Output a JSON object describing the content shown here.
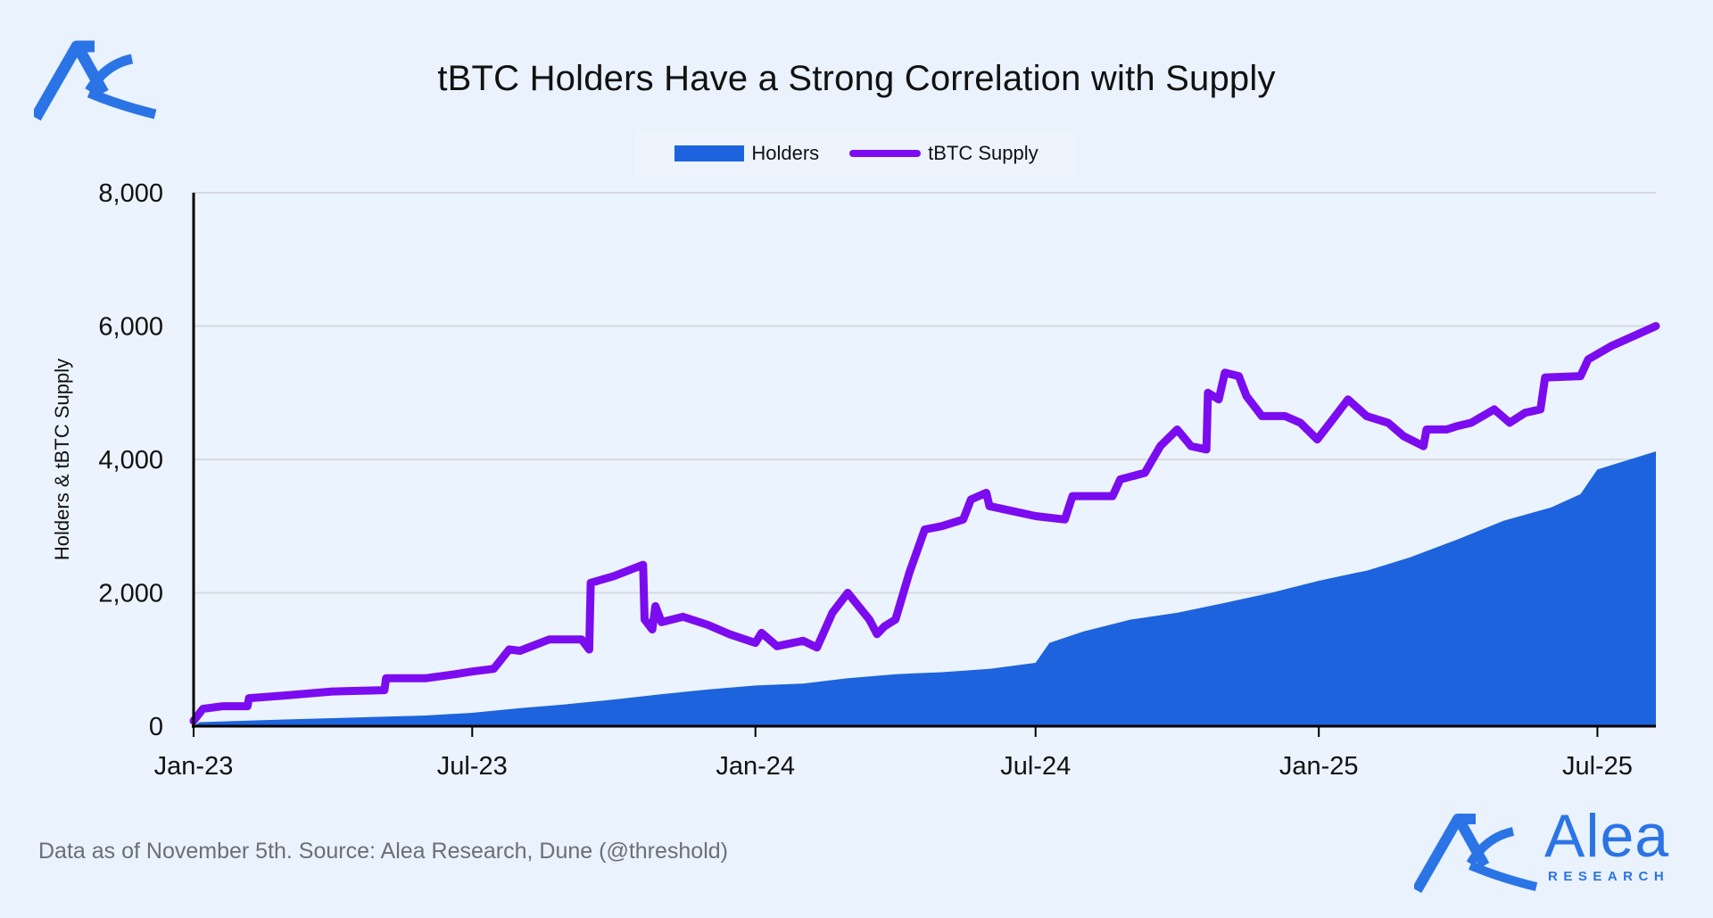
{
  "title": "tBTC Holders Have a Strong Correlation with Supply",
  "legend": {
    "holders": "Holders",
    "supply": "tBTC Supply"
  },
  "footer": "Data as of November 5th. Source: Alea Research, Dune (@threshold)",
  "brand": {
    "name": "Alea",
    "sub": "RESEARCH"
  },
  "colors": {
    "holders": "#1d63dd",
    "supply": "#7b0cf0",
    "background": "#e9f2fd",
    "grid": "#d6d9de",
    "brand": "#2b74e6"
  },
  "chart_data": {
    "type": "line",
    "ylabel": "Holders & tBTC Supply",
    "ylim": [
      0,
      8000
    ],
    "yticks": [
      0,
      2000,
      4000,
      6000,
      8000
    ],
    "ytick_labels": [
      "0",
      "2,000",
      "4,000",
      "6,000",
      "8,000"
    ],
    "xlim": [
      "2023-01-01",
      "2025-08-08"
    ],
    "xticks": [
      "2023-01-01",
      "2023-07-01",
      "2024-01-01",
      "2024-07-01",
      "2025-01-01",
      "2025-07-01"
    ],
    "xtick_labels": [
      "Jan-23",
      "Jul-23",
      "Jan-24",
      "Jul-24",
      "Jan-25",
      "Jul-25"
    ],
    "grid": true,
    "legend_position": "top-center",
    "series": [
      {
        "name": "Holders",
        "style": "area",
        "points": [
          [
            "2023-01-01",
            0
          ],
          [
            "2023-01-05",
            60
          ],
          [
            "2023-02-01",
            80
          ],
          [
            "2023-03-01",
            100
          ],
          [
            "2023-04-01",
            120
          ],
          [
            "2023-05-01",
            140
          ],
          [
            "2023-06-01",
            160
          ],
          [
            "2023-07-01",
            200
          ],
          [
            "2023-08-01",
            270
          ],
          [
            "2023-09-01",
            330
          ],
          [
            "2023-10-01",
            400
          ],
          [
            "2023-11-01",
            480
          ],
          [
            "2023-12-01",
            550
          ],
          [
            "2024-01-01",
            610
          ],
          [
            "2024-02-01",
            640
          ],
          [
            "2024-03-01",
            720
          ],
          [
            "2024-04-01",
            780
          ],
          [
            "2024-05-01",
            810
          ],
          [
            "2024-06-01",
            860
          ],
          [
            "2024-07-01",
            950
          ],
          [
            "2024-07-10",
            1250
          ],
          [
            "2024-08-01",
            1420
          ],
          [
            "2024-09-01",
            1600
          ],
          [
            "2024-10-01",
            1700
          ],
          [
            "2024-11-01",
            1850
          ],
          [
            "2024-12-01",
            2000
          ],
          [
            "2025-01-01",
            2180
          ],
          [
            "2025-01-25",
            2300
          ],
          [
            "2025-02-01",
            2330
          ],
          [
            "2025-03-01",
            2530
          ],
          [
            "2025-04-01",
            2800
          ],
          [
            "2025-05-01",
            3080
          ],
          [
            "2025-06-01",
            3280
          ],
          [
            "2025-06-20",
            3480
          ],
          [
            "2025-07-01",
            3850
          ],
          [
            "2025-08-08",
            4120
          ]
        ]
      },
      {
        "name": "tBTC Supply",
        "style": "line",
        "points": [
          [
            "2023-01-01",
            80
          ],
          [
            "2023-01-07",
            260
          ],
          [
            "2023-01-20",
            300
          ],
          [
            "2023-02-05",
            300
          ],
          [
            "2023-02-06",
            420
          ],
          [
            "2023-03-01",
            460
          ],
          [
            "2023-04-01",
            520
          ],
          [
            "2023-05-05",
            540
          ],
          [
            "2023-05-06",
            720
          ],
          [
            "2023-06-01",
            720
          ],
          [
            "2023-06-20",
            780
          ],
          [
            "2023-07-01",
            820
          ],
          [
            "2023-07-15",
            860
          ],
          [
            "2023-07-25",
            1150
          ],
          [
            "2023-08-01",
            1130
          ],
          [
            "2023-08-20",
            1300
          ],
          [
            "2023-09-10",
            1300
          ],
          [
            "2023-09-15",
            1150
          ],
          [
            "2023-09-16",
            2150
          ],
          [
            "2023-10-01",
            2250
          ],
          [
            "2023-10-20",
            2420
          ],
          [
            "2023-10-21",
            1600
          ],
          [
            "2023-10-26",
            1450
          ],
          [
            "2023-10-28",
            1800
          ],
          [
            "2023-11-01",
            1560
          ],
          [
            "2023-11-15",
            1640
          ],
          [
            "2023-12-01",
            1520
          ],
          [
            "2023-12-15",
            1380
          ],
          [
            "2024-01-01",
            1250
          ],
          [
            "2024-01-05",
            1400
          ],
          [
            "2024-01-15",
            1200
          ],
          [
            "2024-02-01",
            1280
          ],
          [
            "2024-02-10",
            1180
          ],
          [
            "2024-02-20",
            1700
          ],
          [
            "2024-03-01",
            2000
          ],
          [
            "2024-03-15",
            1600
          ],
          [
            "2024-03-20",
            1380
          ],
          [
            "2024-03-25",
            1500
          ],
          [
            "2024-04-01",
            1600
          ],
          [
            "2024-04-10",
            2300
          ],
          [
            "2024-04-20",
            2950
          ],
          [
            "2024-05-01",
            3000
          ],
          [
            "2024-05-15",
            3100
          ],
          [
            "2024-05-20",
            3400
          ],
          [
            "2024-05-30",
            3500
          ],
          [
            "2024-06-01",
            3300
          ],
          [
            "2024-07-01",
            3150
          ],
          [
            "2024-07-20",
            3100
          ],
          [
            "2024-07-25",
            3450
          ],
          [
            "2024-08-20",
            3450
          ],
          [
            "2024-08-25",
            3700
          ],
          [
            "2024-09-10",
            3800
          ],
          [
            "2024-09-20",
            4200
          ],
          [
            "2024-10-01",
            4450
          ],
          [
            "2024-10-10",
            4200
          ],
          [
            "2024-10-20",
            4150
          ],
          [
            "2024-10-21",
            5000
          ],
          [
            "2024-10-28",
            4900
          ],
          [
            "2024-11-01",
            5300
          ],
          [
            "2024-11-10",
            5250
          ],
          [
            "2024-11-15",
            4950
          ],
          [
            "2024-11-25",
            4650
          ],
          [
            "2024-12-10",
            4650
          ],
          [
            "2024-12-20",
            4550
          ],
          [
            "2024-12-31",
            4300
          ],
          [
            "2025-01-10",
            4600
          ],
          [
            "2025-01-20",
            4900
          ],
          [
            "2025-02-01",
            4650
          ],
          [
            "2025-02-15",
            4550
          ],
          [
            "2025-02-25",
            4350
          ],
          [
            "2025-03-10",
            4200
          ],
          [
            "2025-03-12",
            4450
          ],
          [
            "2025-03-25",
            4450
          ],
          [
            "2025-04-01",
            4500
          ],
          [
            "2025-04-10",
            4550
          ],
          [
            "2025-04-25",
            4750
          ],
          [
            "2025-05-05",
            4550
          ],
          [
            "2025-05-15",
            4700
          ],
          [
            "2025-05-25",
            4750
          ],
          [
            "2025-05-28",
            5230
          ],
          [
            "2025-06-20",
            5250
          ],
          [
            "2025-06-25",
            5500
          ],
          [
            "2025-07-10",
            5700
          ],
          [
            "2025-08-08",
            6000
          ]
        ]
      }
    ]
  }
}
